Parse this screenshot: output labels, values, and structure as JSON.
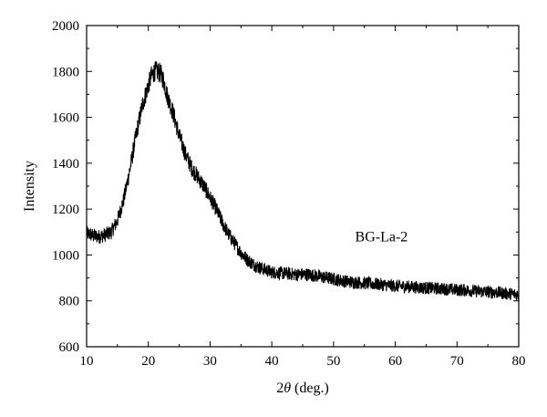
{
  "chart_data": {
    "type": "line",
    "title": "",
    "xlabel_prefix": "2",
    "xlabel_symbol": "θ",
    "xlabel_suffix": " (deg.)",
    "ylabel": "Intensity",
    "xlim": [
      10,
      80
    ],
    "ylim": [
      600,
      2000
    ],
    "xticks": [
      "10",
      "20",
      "30",
      "40",
      "50",
      "60",
      "70",
      "80"
    ],
    "yticks": [
      "600",
      "800",
      "1000",
      "1200",
      "1400",
      "1600",
      "1800",
      "2000"
    ],
    "grid": false,
    "line_color": "#000000",
    "annotation": {
      "text": "BG-La-2",
      "x": 53.5,
      "y": 1060
    },
    "series": [
      {
        "x": [
          10,
          11,
          12,
          13,
          14,
          15,
          16,
          17,
          18,
          19,
          20,
          20.5,
          21,
          21.5,
          22,
          22.5,
          23,
          24,
          25,
          26,
          27,
          28,
          29,
          30,
          31,
          32,
          33,
          34,
          35,
          36,
          37,
          38,
          39,
          40,
          42,
          44,
          46,
          48,
          50,
          52,
          54,
          56,
          58,
          60,
          62,
          64,
          66,
          68,
          70,
          72,
          74,
          76,
          78,
          80
        ],
        "y": [
          1095,
          1085,
          1080,
          1088,
          1100,
          1150,
          1240,
          1370,
          1520,
          1650,
          1740,
          1780,
          1800,
          1800,
          1790,
          1760,
          1700,
          1620,
          1520,
          1440,
          1380,
          1340,
          1300,
          1250,
          1200,
          1140,
          1090,
          1050,
          1010,
          980,
          960,
          945,
          935,
          925,
          920,
          915,
          915,
          905,
          895,
          885,
          880,
          875,
          870,
          865,
          862,
          858,
          855,
          852,
          848,
          845,
          840,
          838,
          832,
          828
        ],
        "noise_amplitude": 45
      }
    ]
  }
}
